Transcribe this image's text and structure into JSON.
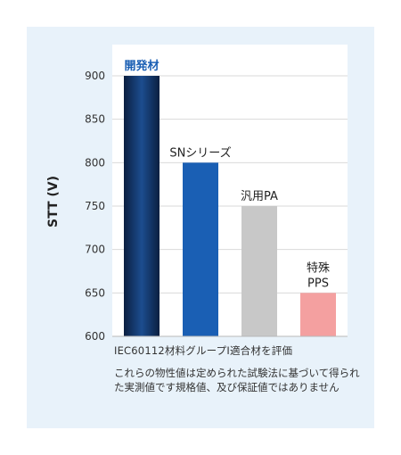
{
  "chart_data": {
    "type": "bar",
    "categories": [
      "開発材",
      "SNシリーズ",
      "汎用PA",
      "特殊\nPPS"
    ],
    "values": [
      900,
      800,
      750,
      650
    ],
    "colors": [
      "#0e2f63",
      "#1a5fb4",
      "#c8c8c8",
      "#f4a0a0"
    ],
    "ylabel": "STT (V)",
    "ylim": [
      600,
      900
    ],
    "yticks": [
      600,
      650,
      700,
      750,
      800,
      850,
      900
    ],
    "grid": true
  },
  "notes": {
    "line1": "IEC60112材料グループⅠ適合材を評価",
    "line2": "これらの物性値は定められた試験法に基づいて得られた実測値です規格値、及び保証値ではありません"
  }
}
